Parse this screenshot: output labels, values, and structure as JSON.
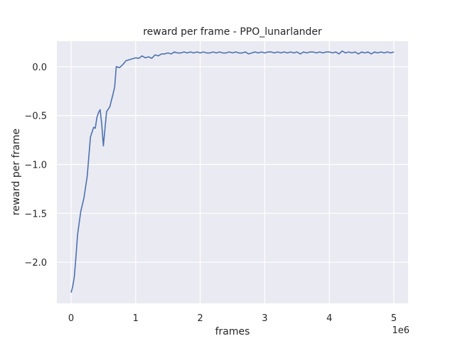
{
  "chart_data": {
    "type": "line",
    "title": "reward per frame - PPO_lunarlander",
    "xlabel": "frames",
    "ylabel": "reward per frame",
    "x_offset_label": "1e6",
    "xlim": [
      -0.22,
      5.22
    ],
    "ylim": [
      -2.42,
      0.26
    ],
    "xticks": [
      0,
      1,
      2,
      3,
      4,
      5
    ],
    "xtick_labels": [
      "0",
      "1",
      "2",
      "3",
      "4",
      "5"
    ],
    "yticks": [
      0.0,
      -0.5,
      -1.0,
      -1.5,
      -2.0
    ],
    "ytick_labels": [
      "0.0",
      "−0.5",
      "−1.0",
      "−1.5",
      "−2.0"
    ],
    "grid": true,
    "background": "#eaeaf2",
    "grid_color": "#ffffff",
    "series": [
      {
        "color": "#4c72b0",
        "x": [
          0,
          0.025,
          0.05,
          0.075,
          0.1,
          0.15,
          0.2,
          0.25,
          0.3,
          0.35,
          0.375,
          0.4,
          0.425,
          0.45,
          0.475,
          0.5,
          0.55,
          0.6,
          0.65,
          0.675,
          0.7,
          0.75,
          0.8,
          0.85,
          0.9,
          0.95,
          1.0,
          1.05,
          1.1,
          1.15,
          1.2,
          1.25,
          1.3,
          1.35,
          1.4,
          1.45,
          1.5,
          1.55,
          1.6,
          1.65,
          1.7,
          1.75,
          1.8,
          1.85,
          1.9,
          1.95,
          2.0,
          2.05,
          2.1,
          2.15,
          2.2,
          2.25,
          2.3,
          2.35,
          2.4,
          2.45,
          2.5,
          2.55,
          2.6,
          2.65,
          2.7,
          2.75,
          2.8,
          2.85,
          2.9,
          2.95,
          3.0,
          3.05,
          3.1,
          3.15,
          3.2,
          3.25,
          3.3,
          3.35,
          3.4,
          3.45,
          3.5,
          3.55,
          3.6,
          3.65,
          3.7,
          3.75,
          3.8,
          3.85,
          3.9,
          3.95,
          4.0,
          4.05,
          4.1,
          4.15,
          4.2,
          4.25,
          4.3,
          4.35,
          4.4,
          4.45,
          4.5,
          4.55,
          4.6,
          4.65,
          4.7,
          4.75,
          4.8,
          4.85,
          4.9,
          4.95,
          5.0
        ],
        "y": [
          -2.31,
          -2.25,
          -2.15,
          -1.95,
          -1.72,
          -1.48,
          -1.34,
          -1.12,
          -0.72,
          -0.62,
          -0.63,
          -0.52,
          -0.47,
          -0.44,
          -0.59,
          -0.81,
          -0.46,
          -0.41,
          -0.28,
          -0.21,
          0.0,
          -0.01,
          0.02,
          0.06,
          0.07,
          0.08,
          0.09,
          0.085,
          0.11,
          0.09,
          0.1,
          0.085,
          0.12,
          0.11,
          0.13,
          0.13,
          0.14,
          0.13,
          0.15,
          0.14,
          0.14,
          0.15,
          0.14,
          0.15,
          0.14,
          0.15,
          0.14,
          0.15,
          0.14,
          0.14,
          0.15,
          0.14,
          0.15,
          0.14,
          0.14,
          0.15,
          0.14,
          0.15,
          0.14,
          0.14,
          0.15,
          0.13,
          0.14,
          0.15,
          0.14,
          0.15,
          0.14,
          0.15,
          0.15,
          0.14,
          0.15,
          0.14,
          0.15,
          0.14,
          0.15,
          0.14,
          0.15,
          0.13,
          0.15,
          0.14,
          0.15,
          0.15,
          0.14,
          0.15,
          0.14,
          0.15,
          0.15,
          0.14,
          0.15,
          0.13,
          0.16,
          0.14,
          0.15,
          0.14,
          0.15,
          0.13,
          0.15,
          0.14,
          0.15,
          0.13,
          0.15,
          0.14,
          0.15,
          0.14,
          0.15,
          0.14,
          0.15
        ]
      }
    ]
  }
}
